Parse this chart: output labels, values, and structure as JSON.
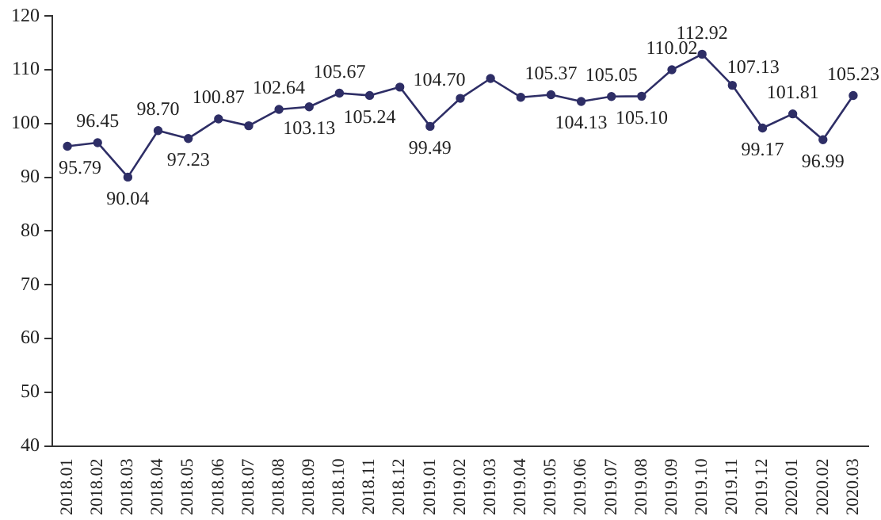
{
  "chart_data": {
    "type": "line",
    "categories": [
      "2018.01",
      "2018.02",
      "2018.03",
      "2018.04",
      "2018.05",
      "2018.06",
      "2018.07",
      "2018.08",
      "2018.09",
      "2018.10",
      "2018.11",
      "2018.12",
      "2019.01",
      "2019.02",
      "2019.03",
      "2019.04",
      "2019.05",
      "2019.06",
      "2019.07",
      "2019.08",
      "2019.09",
      "2019.10",
      "2019.11",
      "2019.12",
      "2020.01",
      "2020.02",
      "2020.03"
    ],
    "series": [
      {
        "color": "#2e2e66",
        "values": [
          95.79,
          96.45,
          90.04,
          98.7,
          97.23,
          100.87,
          99.6,
          102.64,
          103.13,
          105.67,
          105.24,
          106.8,
          99.49,
          104.7,
          108.4,
          104.9,
          105.37,
          104.13,
          105.05,
          105.1,
          110.02,
          112.92,
          107.13,
          99.17,
          101.81,
          96.99,
          105.23
        ],
        "value_labels": [
          "95.79",
          "96.45",
          "90.04",
          "98.70",
          "97.23",
          "100.87",
          null,
          "102.64",
          "103.13",
          "105.67",
          "105.24",
          null,
          "99.49",
          "104.70",
          null,
          null,
          "105.37",
          "104.13",
          "105.05",
          "105.10",
          "110.02",
          "112.92",
          "107.13",
          "99.17",
          "101.81",
          "96.99",
          "105.23"
        ]
      }
    ],
    "ylim": [
      40,
      120
    ],
    "yticks": [
      40,
      50,
      60,
      70,
      80,
      90,
      100,
      110,
      120
    ],
    "grid": false,
    "legend": false,
    "marker": "circle",
    "line_style": "solid"
  }
}
